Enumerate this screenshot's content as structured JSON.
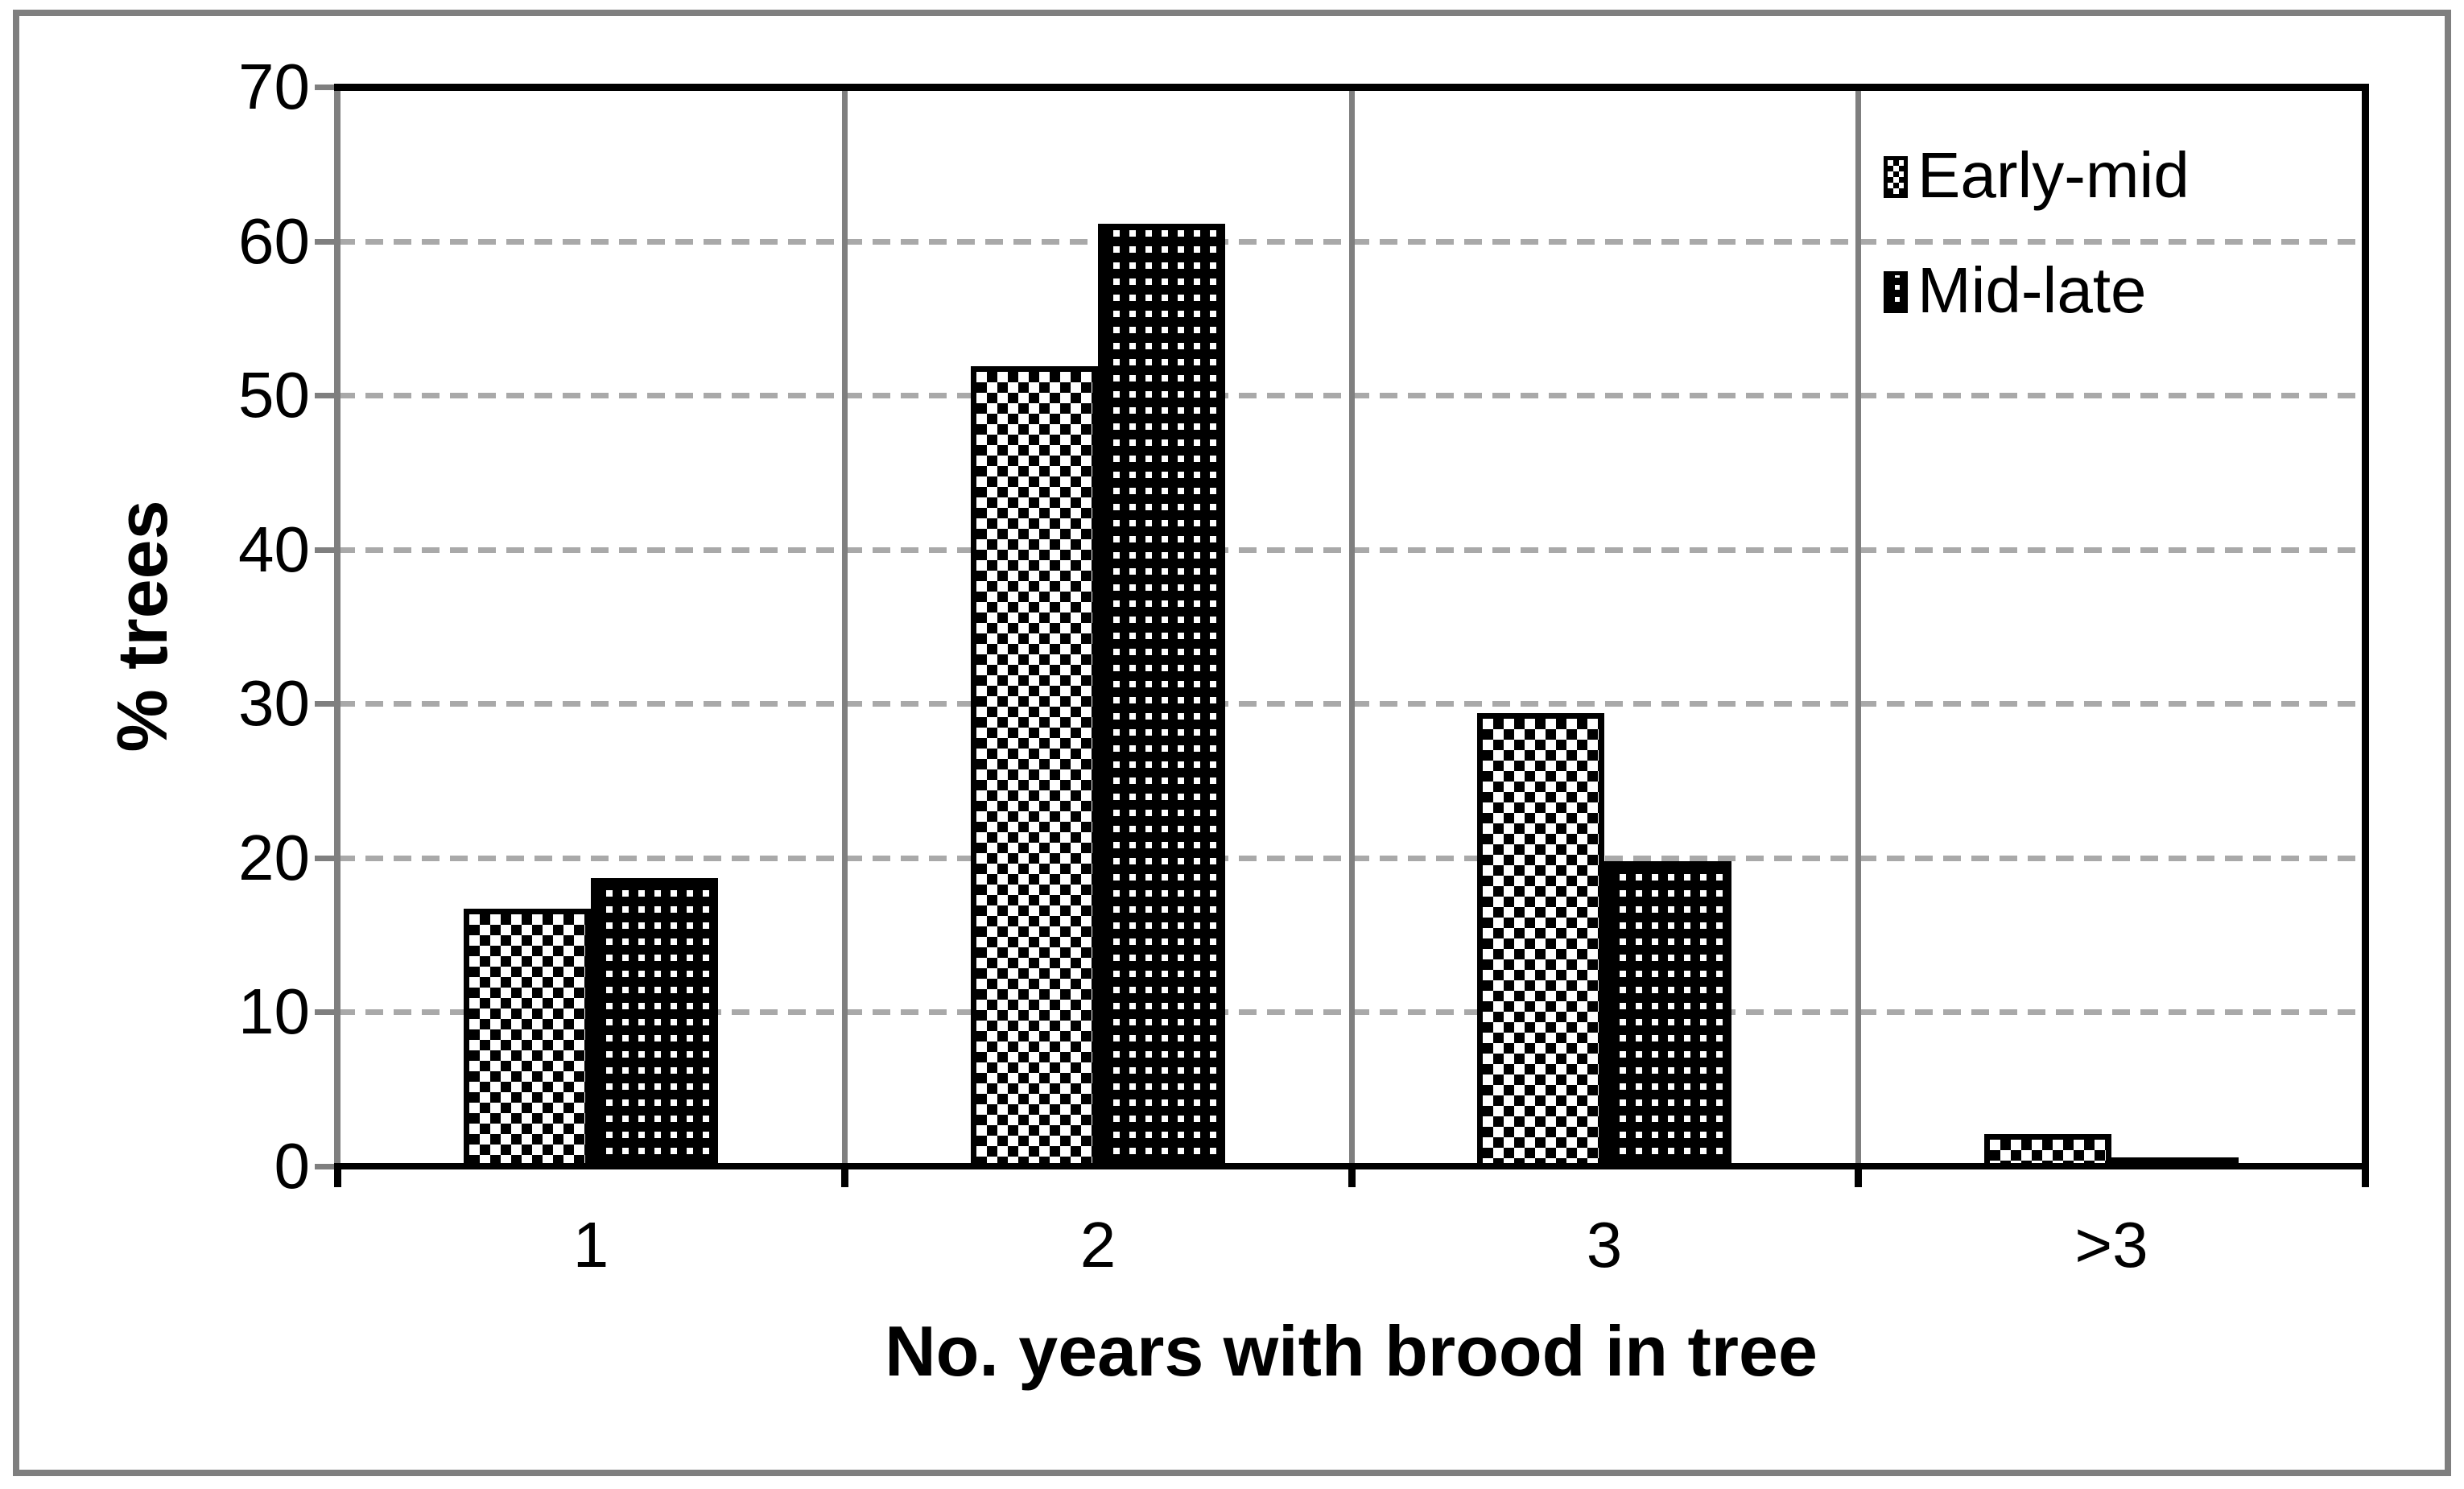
{
  "chart_data": {
    "type": "bar",
    "title": "",
    "categories": [
      "1",
      "2",
      "3",
      ">3"
    ],
    "series": [
      {
        "name": "Early-mid",
        "pattern": "diamond-check",
        "values": [
          16.7,
          51.9,
          29.4,
          2.1
        ]
      },
      {
        "name": "Mid-late",
        "pattern": "dot-grid",
        "values": [
          18.7,
          61.1,
          19.8,
          0.6
        ]
      }
    ],
    "xlabel": "No. years with brood in tree",
    "ylabel": "% trees",
    "ylim": [
      0,
      70
    ],
    "ytick_step": 10,
    "yticks": [
      "0",
      "10",
      "20",
      "30",
      "40",
      "50",
      "60",
      "70"
    ],
    "grid": {
      "horizontal": "dashed-gray",
      "vertical": "solid-gray"
    },
    "legend_position": "top-right-inside",
    "colors": {
      "bar_fill": "#000000",
      "plot_border_black": "#000000",
      "axis_gray": "#7f7f7f",
      "grid_dash_gray": "#a9a9a9",
      "figure_border_gray": "#7f7f7f",
      "background": "#ffffff"
    }
  }
}
